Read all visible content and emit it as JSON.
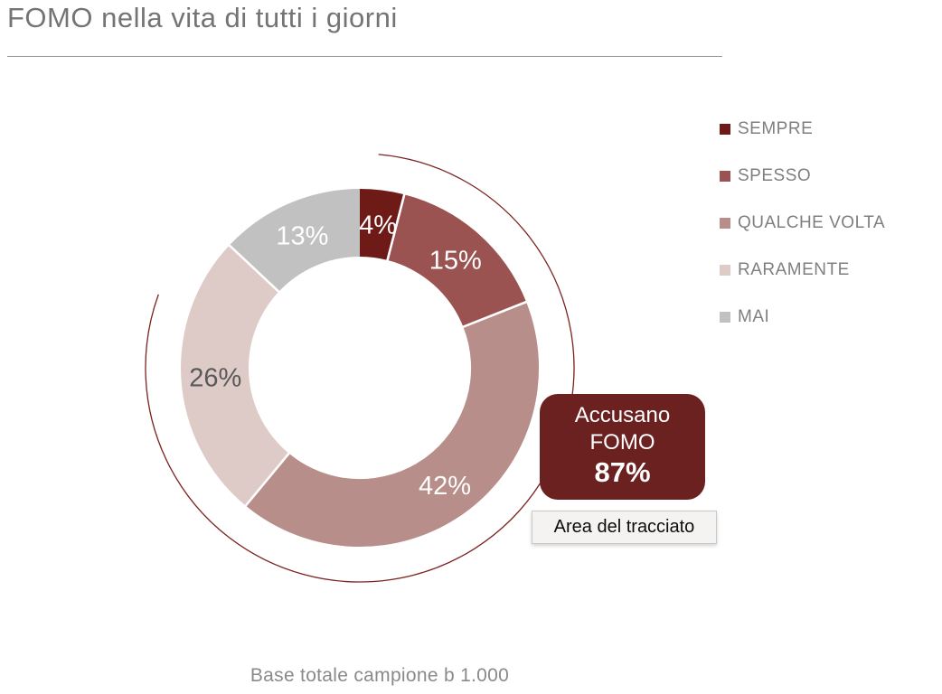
{
  "title": "FOMO nella vita di tutti i giorni",
  "footer": "Base totale campione b 1.000",
  "chart_data": {
    "type": "pie",
    "subtype": "donut",
    "title": "FOMO nella vita di tutti i giorni",
    "categories": [
      "SEMPRE",
      "SPESSO",
      "QUALCHE VOLTA",
      "RARAMENTE",
      "MAI"
    ],
    "values": [
      4,
      15,
      42,
      26,
      13
    ],
    "unit": "%",
    "data_labels": [
      "4%",
      "15%",
      "42%",
      "26%",
      "13%"
    ],
    "colors": [
      "#6E1B17",
      "#9A5350",
      "#B78E89",
      "#DECBC8",
      "#C1C1C1"
    ],
    "data_label_colors": [
      "#ffffff",
      "#ffffff",
      "#ffffff",
      "#595959",
      "#ffffff"
    ],
    "start_angle_deg": 0,
    "direction": "clockwise",
    "inner_radius_ratio": 0.62,
    "legend_position": "right",
    "legend_text_color": "#7f7f7f",
    "accent_arc": {
      "start_deg": 5,
      "end_deg": 290,
      "color": "#7b2220"
    },
    "annotations": {
      "callout": {
        "line1": "Accusano",
        "line2": "FOMO",
        "value": "87%",
        "bg": "#6B211F",
        "text_color": "#ffffff"
      },
      "tooltip": "Area del tracciato"
    }
  }
}
